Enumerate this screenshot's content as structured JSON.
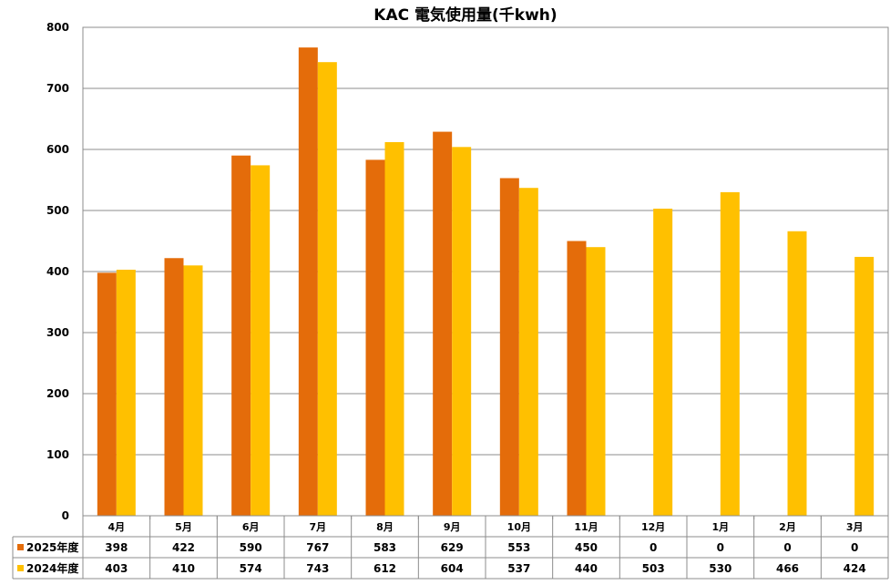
{
  "chart_data": {
    "type": "bar",
    "title": "KAC 電気使用量(千kwh)",
    "categories": [
      "4月",
      "5月",
      "6月",
      "7月",
      "8月",
      "9月",
      "10月",
      "11月",
      "12月",
      "1月",
      "2月",
      "3月"
    ],
    "series": [
      {
        "name": "2025年度",
        "color": "#E46C0A",
        "values": [
          398,
          422,
          590,
          767,
          583,
          629,
          553,
          450,
          0,
          0,
          0,
          0
        ]
      },
      {
        "name": "2024年度",
        "color": "#FFC000",
        "values": [
          403,
          410,
          574,
          743,
          612,
          604,
          537,
          440,
          503,
          530,
          466,
          424
        ]
      }
    ],
    "ylim": [
      0,
      800
    ],
    "yticks": [
      0,
      100,
      200,
      300,
      400,
      500,
      600,
      700,
      800
    ],
    "grid": true,
    "legend": "data-table"
  }
}
